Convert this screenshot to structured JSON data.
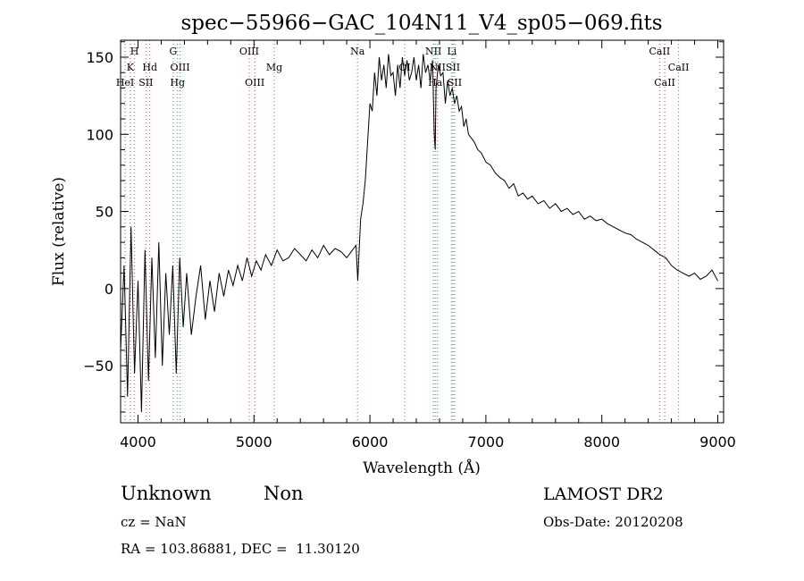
{
  "chart_data": {
    "type": "line",
    "title": "spec−55966−GAC_104N11_V4_sp05−069.fits",
    "xlabel": "Wavelength (Å)",
    "ylabel": "Flux (relative)",
    "xlim": [
      3850,
      9050
    ],
    "ylim": [
      -87,
      161
    ],
    "x_ticks": [
      {
        "value": 4000,
        "label": "4000"
      },
      {
        "value": 5000,
        "label": "5000"
      },
      {
        "value": 6000,
        "label": "6000"
      },
      {
        "value": 7000,
        "label": "7000"
      },
      {
        "value": 8000,
        "label": "8000"
      },
      {
        "value": 9000,
        "label": "9000"
      }
    ],
    "y_ticks": [
      {
        "value": -50,
        "label": "−50"
      },
      {
        "value": 0,
        "label": "0"
      },
      {
        "value": 50,
        "label": "50"
      },
      {
        "value": 100,
        "label": "100"
      },
      {
        "value": 150,
        "label": "150"
      }
    ],
    "grid": false,
    "series": [
      {
        "color": "#000000",
        "x": [
          3850,
          3880,
          3910,
          3940,
          3970,
          4000,
          4030,
          4060,
          4090,
          4120,
          4150,
          4180,
          4210,
          4240,
          4270,
          4300,
          4330,
          4360,
          4390,
          4420,
          4460,
          4500,
          4540,
          4580,
          4620,
          4660,
          4700,
          4740,
          4780,
          4820,
          4860,
          4900,
          4940,
          4980,
          5020,
          5060,
          5100,
          5150,
          5200,
          5250,
          5300,
          5350,
          5400,
          5450,
          5500,
          5550,
          5600,
          5650,
          5700,
          5750,
          5800,
          5850,
          5880,
          5895,
          5905,
          5920,
          5940,
          5960,
          5980,
          6000,
          6020,
          6040,
          6060,
          6080,
          6100,
          6120,
          6140,
          6160,
          6180,
          6200,
          6220,
          6240,
          6260,
          6280,
          6300,
          6320,
          6340,
          6360,
          6380,
          6400,
          6420,
          6440,
          6460,
          6480,
          6500,
          6520,
          6540,
          6555,
          6563,
          6570,
          6590,
          6610,
          6630,
          6650,
          6670,
          6690,
          6710,
          6730,
          6750,
          6770,
          6790,
          6810,
          6830,
          6850,
          6870,
          6900,
          6930,
          6960,
          7000,
          7040,
          7080,
          7120,
          7160,
          7200,
          7240,
          7280,
          7320,
          7360,
          7400,
          7450,
          7500,
          7550,
          7600,
          7650,
          7700,
          7750,
          7800,
          7850,
          7900,
          7950,
          8000,
          8050,
          8100,
          8150,
          8200,
          8250,
          8300,
          8350,
          8400,
          8450,
          8500,
          8550,
          8600,
          8650,
          8700,
          8750,
          8800,
          8850,
          8900,
          8950,
          9000
        ],
        "y": [
          -40,
          15,
          -70,
          40,
          -55,
          5,
          -80,
          25,
          -60,
          20,
          -45,
          30,
          -50,
          10,
          -30,
          15,
          -55,
          20,
          -25,
          10,
          -30,
          -5,
          15,
          -20,
          5,
          -15,
          10,
          -5,
          12,
          2,
          15,
          5,
          20,
          8,
          18,
          12,
          22,
          15,
          25,
          18,
          20,
          26,
          22,
          18,
          25,
          20,
          28,
          22,
          26,
          24,
          20,
          25,
          28,
          5,
          22,
          45,
          55,
          70,
          95,
          120,
          115,
          140,
          125,
          150,
          135,
          145,
          130,
          152,
          138,
          140,
          125,
          145,
          130,
          150,
          138,
          148,
          135,
          140,
          150,
          135,
          145,
          130,
          152,
          140,
          145,
          135,
          148,
          100,
          90,
          130,
          145,
          138,
          140,
          120,
          135,
          125,
          130,
          120,
          125,
          115,
          118,
          105,
          110,
          100,
          98,
          95,
          90,
          88,
          82,
          80,
          75,
          72,
          70,
          65,
          68,
          60,
          62,
          58,
          60,
          55,
          57,
          52,
          55,
          50,
          52,
          48,
          50,
          45,
          47,
          44,
          45,
          42,
          40,
          38,
          36,
          35,
          32,
          30,
          28,
          25,
          22,
          20,
          15,
          12,
          10,
          8,
          10,
          6,
          8,
          12,
          5
        ]
      }
    ],
    "line_ids": [
      {
        "label": "H",
        "x": 3970,
        "row": 0
      },
      {
        "label": "K",
        "x": 3934,
        "row": 1
      },
      {
        "label": "Hd",
        "x": 4102,
        "row": 1
      },
      {
        "label": "HeI",
        "x": 3889,
        "row": 2
      },
      {
        "label": "SII",
        "x": 4069,
        "row": 2
      },
      {
        "label": "G",
        "x": 4304,
        "row": 0
      },
      {
        "label": "OIII",
        "x": 4363,
        "row": 1
      },
      {
        "label": "Hg",
        "x": 4341,
        "row": 2
      },
      {
        "label": "OIII",
        "x": 4959,
        "row": 0
      },
      {
        "label": "OIII",
        "x": 5007,
        "row": 2
      },
      {
        "label": "Mg",
        "x": 5175,
        "row": 1
      },
      {
        "label": "Na",
        "x": 5893,
        "row": 0
      },
      {
        "label": "OI",
        "x": 6300,
        "row": 1
      },
      {
        "label": "NII",
        "x": 6548,
        "row": 0
      },
      {
        "label": "Li",
        "x": 6707,
        "row": 0
      },
      {
        "label": "NII",
        "x": 6583,
        "row": 1
      },
      {
        "label": "SII",
        "x": 6716,
        "row": 1
      },
      {
        "label": "Ha",
        "x": 6563,
        "row": 2
      },
      {
        "label": "SII",
        "x": 6731,
        "row": 2
      },
      {
        "label": "CaII",
        "x": 8498,
        "row": 0
      },
      {
        "label": "CaII",
        "x": 8662,
        "row": 1
      },
      {
        "label": "CaII",
        "x": 8542,
        "row": 2
      }
    ],
    "line_id_color": "#d04a4a"
  },
  "footer": {
    "class_label": "Unknown",
    "subclass_label": "Non",
    "survey": "LAMOST DR2",
    "cz": "cz = NaN",
    "obs_date": "Obs-Date: 20120208",
    "coords": "RA = 103.86881, DEC =  11.30120"
  }
}
